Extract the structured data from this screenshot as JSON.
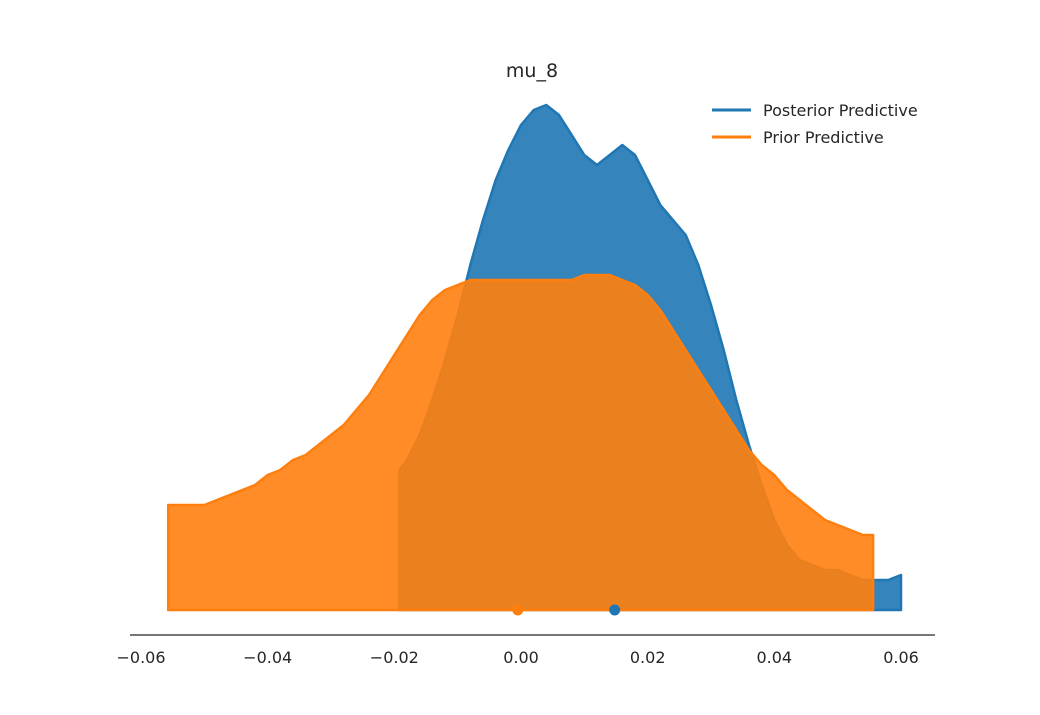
{
  "chart_data": {
    "type": "area",
    "title": "mu_8",
    "xlabel": "",
    "ylabel": "",
    "xlim": [
      -0.062,
      0.065
    ],
    "ylim": [
      0,
      1.0
    ],
    "x_ticks": [
      -0.06,
      -0.04,
      -0.02,
      0.0,
      0.02,
      0.04,
      0.06
    ],
    "x_tick_labels": [
      "−0.06",
      "−0.04",
      "−0.02",
      "0.00",
      "0.02",
      "0.04",
      "0.06"
    ],
    "grid": false,
    "legend_position": "top-right",
    "series": [
      {
        "name": "Posterior Predictive",
        "color": "#1f77b4",
        "fill_opacity": 0.9,
        "x": [
          -0.0192,
          -0.018,
          -0.016,
          -0.014,
          -0.012,
          -0.01,
          -0.008,
          -0.006,
          -0.004,
          -0.002,
          0.0,
          0.002,
          0.004,
          0.006,
          0.008,
          0.01,
          0.012,
          0.014,
          0.016,
          0.018,
          0.02,
          0.022,
          0.024,
          0.026,
          0.028,
          0.03,
          0.032,
          0.034,
          0.036,
          0.038,
          0.04,
          0.042,
          0.044,
          0.046,
          0.048,
          0.05,
          0.052,
          0.054,
          0.056,
          0.058,
          0.06
        ],
        "y": [
          0.28,
          0.3,
          0.35,
          0.42,
          0.5,
          0.59,
          0.69,
          0.78,
          0.86,
          0.92,
          0.97,
          1.0,
          1.01,
          0.99,
          0.95,
          0.91,
          0.89,
          0.91,
          0.93,
          0.91,
          0.86,
          0.81,
          0.78,
          0.75,
          0.69,
          0.61,
          0.52,
          0.42,
          0.33,
          0.25,
          0.18,
          0.13,
          0.1,
          0.09,
          0.08,
          0.08,
          0.07,
          0.06,
          0.06,
          0.06,
          0.07
        ]
      },
      {
        "name": "Prior Predictive",
        "color": "#ff7f0e",
        "fill_opacity": 0.9,
        "x": [
          -0.0557,
          -0.054,
          -0.052,
          -0.05,
          -0.048,
          -0.046,
          -0.044,
          -0.042,
          -0.04,
          -0.038,
          -0.036,
          -0.034,
          -0.032,
          -0.03,
          -0.028,
          -0.026,
          -0.024,
          -0.022,
          -0.02,
          -0.018,
          -0.016,
          -0.014,
          -0.012,
          -0.01,
          -0.008,
          -0.006,
          -0.004,
          -0.002,
          0.0,
          0.002,
          0.004,
          0.006,
          0.008,
          0.01,
          0.012,
          0.014,
          0.016,
          0.018,
          0.02,
          0.022,
          0.024,
          0.026,
          0.028,
          0.03,
          0.032,
          0.034,
          0.036,
          0.038,
          0.04,
          0.042,
          0.044,
          0.046,
          0.048,
          0.05,
          0.052,
          0.054,
          0.0556
        ],
        "y": [
          0.21,
          0.21,
          0.21,
          0.21,
          0.22,
          0.23,
          0.24,
          0.25,
          0.27,
          0.28,
          0.3,
          0.31,
          0.33,
          0.35,
          0.37,
          0.4,
          0.43,
          0.47,
          0.51,
          0.55,
          0.59,
          0.62,
          0.64,
          0.65,
          0.66,
          0.66,
          0.66,
          0.66,
          0.66,
          0.66,
          0.66,
          0.66,
          0.66,
          0.67,
          0.67,
          0.67,
          0.66,
          0.65,
          0.63,
          0.6,
          0.56,
          0.52,
          0.48,
          0.44,
          0.4,
          0.36,
          0.32,
          0.29,
          0.27,
          0.24,
          0.22,
          0.2,
          0.18,
          0.17,
          0.16,
          0.15,
          0.15
        ]
      }
    ],
    "point_markers": [
      {
        "series": "Prior Predictive",
        "x": -0.0005,
        "color": "#ff7f0e"
      },
      {
        "series": "Posterior Predictive",
        "x": 0.0148,
        "color": "#1f77b4"
      }
    ]
  }
}
